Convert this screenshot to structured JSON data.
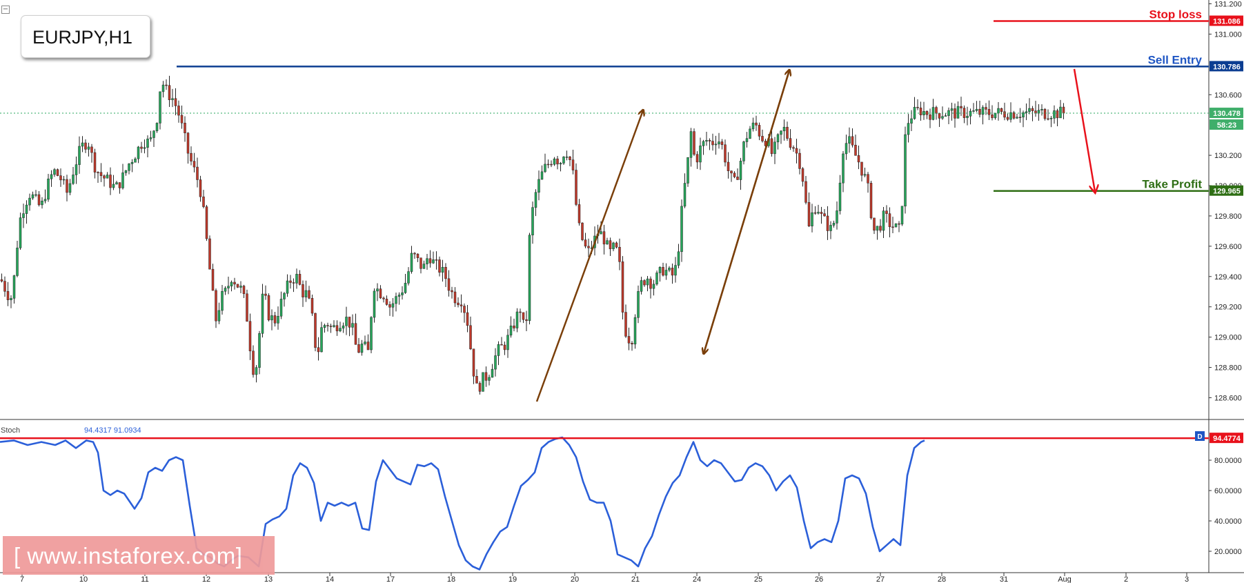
{
  "symbol": "EURJPY,H1",
  "watermark": "[  www.instaforex.com]",
  "colors": {
    "bull": "#26a65b",
    "bear": "#c0392b",
    "ma_line": "#2b5fd9",
    "stop": "#e8111b",
    "entry": "#0b3d91",
    "take_profit": "#2e6e14",
    "arrow": "#7a3f0a",
    "arrow_down": "#e8111b"
  },
  "annotations": {
    "stop_loss": "Stop loss",
    "sell_entry": "Sell Entry",
    "take_profit": "Take Profit"
  },
  "indicator": {
    "label": "Stoch",
    "values_text": "94.4317  91.0934",
    "badge": "D",
    "level_label": "94.4774"
  },
  "chart_data": [
    {
      "type": "candlestick",
      "title": "EURJPY,H1",
      "x_ticks": [
        "7",
        "10",
        "11",
        "12",
        "13",
        "14",
        "17",
        "18",
        "19",
        "20",
        "21",
        "24",
        "25",
        "26",
        "27",
        "28",
        "31",
        "Aug",
        "2",
        "3"
      ],
      "y_ticks": [
        "131.200",
        "131.000",
        "130.600",
        "130.200",
        "130.000",
        "129.800",
        "129.600",
        "129.400",
        "129.200",
        "129.000",
        "128.800",
        "128.600"
      ],
      "ylim": [
        128.45,
        131.2
      ],
      "price_labels": {
        "stop_loss": "131.086",
        "sell_entry": "130.786",
        "current": "130.478",
        "countdown": "58:23",
        "take_profit": "129.965"
      },
      "levels": {
        "stop_loss": 131.086,
        "sell_entry": 130.786,
        "current": 130.478,
        "take_profit": 129.965
      },
      "close_path": [
        [
          0,
          129.38
        ],
        [
          8,
          129.3
        ],
        [
          14,
          129.25
        ],
        [
          20,
          129.42
        ],
        [
          26,
          129.75
        ],
        [
          34,
          129.88
        ],
        [
          42,
          129.95
        ],
        [
          50,
          129.9
        ],
        [
          58,
          129.85
        ],
        [
          66,
          129.98
        ],
        [
          76,
          130.1
        ],
        [
          86,
          130.05
        ],
        [
          96,
          129.95
        ],
        [
          106,
          130.12
        ],
        [
          116,
          130.25
        ],
        [
          126,
          130.3
        ],
        [
          134,
          130.15
        ],
        [
          142,
          130.08
        ],
        [
          150,
          130.05
        ],
        [
          158,
          130.02
        ],
        [
          166,
          129.98
        ],
        [
          176,
          130.05
        ],
        [
          186,
          130.15
        ],
        [
          196,
          130.22
        ],
        [
          206,
          130.3
        ],
        [
          216,
          130.28
        ],
        [
          226,
          130.45
        ],
        [
          232,
          130.7
        ],
        [
          240,
          130.62
        ],
        [
          248,
          130.58
        ],
        [
          256,
          130.5
        ],
        [
          264,
          130.35
        ],
        [
          272,
          130.2
        ],
        [
          280,
          130.1
        ],
        [
          288,
          130.0
        ],
        [
          294,
          129.8
        ],
        [
          300,
          129.55
        ],
        [
          306,
          129.3
        ],
        [
          312,
          129.1
        ],
        [
          318,
          129.25
        ],
        [
          326,
          129.3
        ],
        [
          334,
          129.4
        ],
        [
          342,
          129.35
        ],
        [
          350,
          129.3
        ],
        [
          356,
          129.15
        ],
        [
          362,
          128.9
        ],
        [
          368,
          128.72
        ],
        [
          374,
          129.0
        ],
        [
          380,
          129.3
        ],
        [
          388,
          129.15
        ],
        [
          396,
          129.1
        ],
        [
          404,
          129.2
        ],
        [
          412,
          129.3
        ],
        [
          420,
          129.38
        ],
        [
          428,
          129.4
        ],
        [
          436,
          129.3
        ],
        [
          444,
          129.28
        ],
        [
          452,
          129.1
        ],
        [
          458,
          128.85
        ],
        [
          464,
          129.05
        ],
        [
          472,
          129.1
        ],
        [
          480,
          129.05
        ],
        [
          490,
          129.1
        ],
        [
          500,
          129.12
        ],
        [
          508,
          129.08
        ],
        [
          516,
          128.9
        ],
        [
          524,
          128.95
        ],
        [
          532,
          128.9
        ],
        [
          540,
          129.35
        ],
        [
          548,
          129.3
        ],
        [
          556,
          129.28
        ],
        [
          564,
          129.2
        ],
        [
          572,
          129.25
        ],
        [
          580,
          129.3
        ],
        [
          588,
          129.38
        ],
        [
          596,
          129.55
        ],
        [
          604,
          129.5
        ],
        [
          612,
          129.45
        ],
        [
          620,
          129.55
        ],
        [
          628,
          129.48
        ],
        [
          636,
          129.45
        ],
        [
          644,
          129.4
        ],
        [
          652,
          129.3
        ],
        [
          660,
          129.25
        ],
        [
          668,
          129.25
        ],
        [
          676,
          129.1
        ],
        [
          684,
          128.8
        ],
        [
          690,
          128.65
        ],
        [
          698,
          128.72
        ],
        [
          706,
          128.75
        ],
        [
          714,
          128.85
        ],
        [
          722,
          128.92
        ],
        [
          730,
          128.95
        ],
        [
          738,
          129.02
        ],
        [
          746,
          129.12
        ],
        [
          754,
          129.2
        ],
        [
          760,
          128.95
        ],
        [
          766,
          129.65
        ],
        [
          772,
          129.9
        ],
        [
          778,
          130.0
        ],
        [
          786,
          130.1
        ],
        [
          794,
          130.15
        ],
        [
          802,
          130.2
        ],
        [
          810,
          130.15
        ],
        [
          818,
          130.25
        ],
        [
          824,
          130.18
        ],
        [
          830,
          130.05
        ],
        [
          836,
          129.75
        ],
        [
          842,
          129.65
        ],
        [
          850,
          129.55
        ],
        [
          858,
          129.62
        ],
        [
          866,
          129.7
        ],
        [
          874,
          129.65
        ],
        [
          882,
          129.55
        ],
        [
          890,
          129.6
        ],
        [
          896,
          129.5
        ],
        [
          902,
          129.1
        ],
        [
          908,
          129.0
        ],
        [
          914,
          128.98
        ],
        [
          920,
          129.2
        ],
        [
          928,
          129.35
        ],
        [
          936,
          129.4
        ],
        [
          944,
          129.35
        ],
        [
          952,
          129.4
        ],
        [
          960,
          129.45
        ],
        [
          968,
          129.42
        ],
        [
          976,
          129.4
        ],
        [
          982,
          129.6
        ],
        [
          988,
          129.9
        ],
        [
          994,
          130.1
        ],
        [
          1000,
          130.35
        ],
        [
          1006,
          130.15
        ],
        [
          1014,
          130.25
        ],
        [
          1022,
          130.3
        ],
        [
          1030,
          130.28
        ],
        [
          1038,
          130.32
        ],
        [
          1046,
          130.25
        ],
        [
          1054,
          130.1
        ],
        [
          1062,
          130.0
        ],
        [
          1070,
          130.12
        ],
        [
          1078,
          130.3
        ],
        [
          1086,
          130.38
        ],
        [
          1094,
          130.4
        ],
        [
          1102,
          130.32
        ],
        [
          1110,
          130.3
        ],
        [
          1118,
          130.2
        ],
        [
          1126,
          130.3
        ],
        [
          1134,
          130.38
        ],
        [
          1142,
          130.3
        ],
        [
          1150,
          130.25
        ],
        [
          1158,
          130.15
        ],
        [
          1164,
          130.0
        ],
        [
          1170,
          129.7
        ],
        [
          1176,
          129.82
        ],
        [
          1182,
          129.88
        ],
        [
          1188,
          129.8
        ],
        [
          1196,
          129.75
        ],
        [
          1204,
          129.7
        ],
        [
          1212,
          129.85
        ],
        [
          1220,
          130.25
        ],
        [
          1228,
          130.3
        ],
        [
          1236,
          130.22
        ],
        [
          1244,
          130.15
        ],
        [
          1252,
          130.05
        ],
        [
          1258,
          129.95
        ],
        [
          1264,
          129.7
        ],
        [
          1272,
          129.72
        ],
        [
          1280,
          129.8
        ],
        [
          1288,
          129.75
        ],
        [
          1296,
          129.72
        ],
        [
          1304,
          129.7
        ],
        [
          1310,
          130.3
        ],
        [
          1316,
          130.45
        ],
        [
          1324,
          130.48
        ],
        [
          1332,
          130.5
        ],
        [
          1340,
          130.48
        ]
      ]
    },
    {
      "type": "line",
      "title": "Stoch",
      "y_ticks": [
        "80.0000",
        "60.0000",
        "40.0000",
        "20.0000"
      ],
      "ylim": [
        0,
        104
      ],
      "level": 94.4774,
      "series_points": [
        [
          0,
          92
        ],
        [
          20,
          93
        ],
        [
          40,
          90
        ],
        [
          60,
          92
        ],
        [
          80,
          90
        ],
        [
          95,
          93
        ],
        [
          110,
          88
        ],
        [
          125,
          93
        ],
        [
          135,
          92
        ],
        [
          142,
          85
        ],
        [
          150,
          60
        ],
        [
          160,
          57
        ],
        [
          170,
          60
        ],
        [
          180,
          58
        ],
        [
          195,
          48
        ],
        [
          205,
          55
        ],
        [
          215,
          72
        ],
        [
          225,
          75
        ],
        [
          235,
          73
        ],
        [
          245,
          80
        ],
        [
          255,
          82
        ],
        [
          265,
          80
        ],
        [
          275,
          50
        ],
        [
          285,
          22
        ],
        [
          295,
          18
        ],
        [
          305,
          16
        ],
        [
          315,
          12
        ],
        [
          325,
          10
        ],
        [
          335,
          14
        ],
        [
          345,
          17
        ],
        [
          360,
          16
        ],
        [
          375,
          10
        ],
        [
          385,
          38
        ],
        [
          395,
          41
        ],
        [
          405,
          43
        ],
        [
          415,
          48
        ],
        [
          425,
          70
        ],
        [
          435,
          78
        ],
        [
          445,
          75
        ],
        [
          455,
          65
        ],
        [
          465,
          40
        ],
        [
          475,
          52
        ],
        [
          485,
          50
        ],
        [
          495,
          52
        ],
        [
          505,
          50
        ],
        [
          515,
          52
        ],
        [
          525,
          35
        ],
        [
          535,
          34
        ],
        [
          545,
          66
        ],
        [
          555,
          80
        ],
        [
          565,
          74
        ],
        [
          575,
          68
        ],
        [
          585,
          66
        ],
        [
          595,
          64
        ],
        [
          605,
          77
        ],
        [
          615,
          76
        ],
        [
          625,
          78
        ],
        [
          635,
          74
        ],
        [
          645,
          56
        ],
        [
          655,
          40
        ],
        [
          665,
          24
        ],
        [
          675,
          14
        ],
        [
          685,
          10
        ],
        [
          695,
          8
        ],
        [
          705,
          18
        ],
        [
          715,
          26
        ],
        [
          725,
          33
        ],
        [
          735,
          36
        ],
        [
          745,
          50
        ],
        [
          755,
          63
        ],
        [
          765,
          67
        ],
        [
          775,
          72
        ],
        [
          785,
          88
        ],
        [
          795,
          92
        ],
        [
          805,
          94
        ],
        [
          815,
          95
        ],
        [
          825,
          90
        ],
        [
          835,
          82
        ],
        [
          845,
          66
        ],
        [
          855,
          54
        ],
        [
          865,
          52
        ],
        [
          875,
          52
        ],
        [
          885,
          40
        ],
        [
          895,
          18
        ],
        [
          905,
          16
        ],
        [
          915,
          14
        ],
        [
          925,
          10
        ],
        [
          935,
          22
        ],
        [
          945,
          30
        ],
        [
          955,
          44
        ],
        [
          965,
          56
        ],
        [
          975,
          65
        ],
        [
          985,
          70
        ],
        [
          995,
          82
        ],
        [
          1005,
          92
        ],
        [
          1015,
          80
        ],
        [
          1025,
          76
        ],
        [
          1035,
          80
        ],
        [
          1045,
          78
        ],
        [
          1055,
          72
        ],
        [
          1065,
          66
        ],
        [
          1075,
          67
        ],
        [
          1085,
          75
        ],
        [
          1095,
          78
        ],
        [
          1105,
          76
        ],
        [
          1115,
          70
        ],
        [
          1125,
          60
        ],
        [
          1135,
          66
        ],
        [
          1145,
          70
        ],
        [
          1155,
          62
        ],
        [
          1165,
          40
        ],
        [
          1175,
          22
        ],
        [
          1185,
          26
        ],
        [
          1195,
          28
        ],
        [
          1205,
          26
        ],
        [
          1215,
          40
        ],
        [
          1225,
          68
        ],
        [
          1235,
          70
        ],
        [
          1245,
          68
        ],
        [
          1255,
          58
        ],
        [
          1265,
          36
        ],
        [
          1275,
          20
        ],
        [
          1285,
          24
        ],
        [
          1295,
          28
        ],
        [
          1305,
          24
        ],
        [
          1315,
          70
        ],
        [
          1325,
          88
        ],
        [
          1335,
          92
        ],
        [
          1340,
          93
        ]
      ]
    }
  ]
}
